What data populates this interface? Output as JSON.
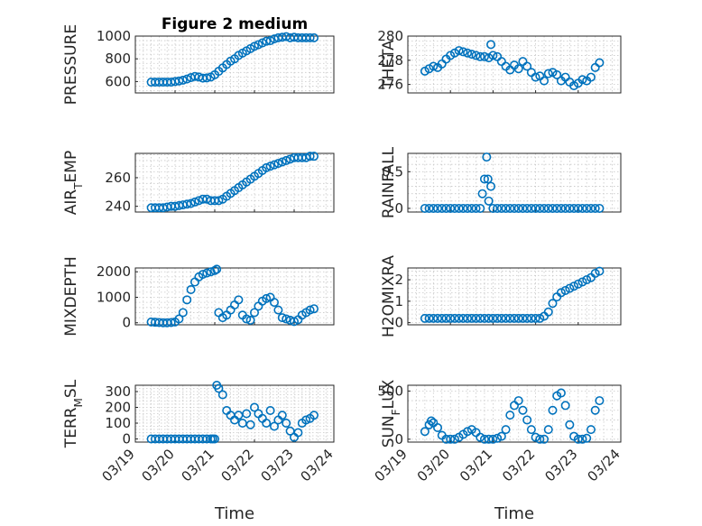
{
  "figure": {
    "title": "Figure 2 medium",
    "x_axis_label": "Time",
    "x_tick_labels": [
      "03/19",
      "03/20",
      "03/21",
      "03/22",
      "03/23",
      "03/24"
    ],
    "marker_color": "#0072BD"
  },
  "chart_data": [
    {
      "type": "scatter",
      "ylabel": "PRESSURE",
      "title": "Figure 2 medium",
      "xlabel": "",
      "ylim": [
        500,
        1000
      ],
      "yticks": [
        600,
        800,
        1000
      ],
      "yticklabels": [
        "600",
        "800",
        "1000"
      ],
      "xlim": [
        0,
        5
      ],
      "grid": true,
      "x": [
        0.4,
        0.5,
        0.6,
        0.7,
        0.8,
        0.9,
        1.0,
        1.1,
        1.2,
        1.3,
        1.4,
        1.5,
        1.6,
        1.7,
        1.8,
        1.9,
        2.0,
        2.1,
        2.2,
        2.3,
        2.4,
        2.5,
        2.6,
        2.7,
        2.8,
        2.9,
        3.0,
        3.1,
        3.2,
        3.3,
        3.4,
        3.5,
        3.6,
        3.7,
        3.8,
        3.9,
        4.0,
        4.1,
        4.2,
        4.3,
        4.4,
        4.5
      ],
      "y": [
        595,
        595,
        595,
        595,
        595,
        595,
        600,
        605,
        612,
        622,
        635,
        645,
        640,
        630,
        632,
        640,
        660,
        690,
        720,
        750,
        780,
        800,
        830,
        850,
        870,
        890,
        910,
        925,
        940,
        955,
        960,
        975,
        985,
        990,
        995,
        985,
        990,
        985,
        985,
        985,
        985,
        985
      ]
    },
    {
      "type": "scatter",
      "ylabel": "THETA",
      "xlabel": "",
      "ylim": [
        275.3,
        280
      ],
      "yticks": [
        276,
        278,
        280
      ],
      "yticklabels": [
        "276",
        "278",
        "280"
      ],
      "xlim": [
        0,
        5
      ],
      "grid": true,
      "x": [
        0.4,
        0.5,
        0.6,
        0.7,
        0.8,
        0.9,
        1.0,
        1.1,
        1.2,
        1.3,
        1.4,
        1.5,
        1.6,
        1.7,
        1.8,
        1.9,
        1.95,
        2.0,
        2.1,
        2.2,
        2.3,
        2.4,
        2.5,
        2.6,
        2.7,
        2.8,
        2.9,
        3.0,
        3.1,
        3.2,
        3.3,
        3.4,
        3.5,
        3.6,
        3.7,
        3.8,
        3.9,
        4.0,
        4.1,
        4.2,
        4.3,
        4.4,
        4.5
      ],
      "y": [
        277.1,
        277.3,
        277.5,
        277.4,
        277.7,
        278.1,
        278.4,
        278.6,
        278.8,
        278.7,
        278.6,
        278.5,
        278.4,
        278.3,
        278.3,
        278.2,
        279.3,
        278.4,
        278.3,
        277.9,
        277.5,
        277.2,
        277.6,
        277.3,
        277.9,
        277.5,
        277.0,
        276.6,
        276.7,
        276.3,
        276.9,
        277.0,
        276.8,
        276.3,
        276.6,
        276.2,
        275.9,
        276.1,
        276.4,
        276.3,
        276.6,
        277.4,
        277.8
      ]
    },
    {
      "type": "scatter",
      "ylabel": "AIR_TEMP",
      "xlabel": "",
      "ylim": [
        236,
        277
      ],
      "yticks": [
        240,
        260
      ],
      "yticklabels": [
        "240",
        "260"
      ],
      "xlim": [
        0,
        5
      ],
      "grid": true,
      "x": [
        0.4,
        0.5,
        0.6,
        0.7,
        0.8,
        0.9,
        1.0,
        1.1,
        1.2,
        1.3,
        1.4,
        1.5,
        1.6,
        1.7,
        1.8,
        1.9,
        2.0,
        2.1,
        2.2,
        2.3,
        2.4,
        2.5,
        2.6,
        2.7,
        2.8,
        2.9,
        3.0,
        3.1,
        3.2,
        3.3,
        3.4,
        3.5,
        3.6,
        3.7,
        3.8,
        3.9,
        4.0,
        4.1,
        4.2,
        4.3,
        4.4,
        4.5
      ],
      "y": [
        239,
        239,
        239,
        239,
        239.5,
        240,
        240,
        240.5,
        241,
        241.5,
        242,
        243,
        244,
        245,
        245,
        244,
        244,
        244,
        245,
        247,
        249,
        251,
        253,
        255,
        257,
        259,
        261,
        263,
        265,
        267,
        268,
        269,
        270,
        271,
        272,
        273,
        274,
        274,
        274,
        274,
        275,
        275
      ]
    },
    {
      "type": "scatter",
      "ylabel": "RAINFALL",
      "xlabel": "",
      "ylim": [
        -0.05,
        0.75
      ],
      "yticks": [
        0,
        0.5
      ],
      "yticklabels": [
        "0",
        "0.5"
      ],
      "xlim": [
        0,
        5
      ],
      "grid": true,
      "x": [
        0.4,
        0.5,
        0.6,
        0.7,
        0.8,
        0.9,
        1.0,
        1.1,
        1.2,
        1.3,
        1.4,
        1.5,
        1.6,
        1.7,
        1.75,
        1.8,
        1.85,
        1.88,
        1.9,
        1.95,
        2.0,
        2.1,
        2.2,
        2.3,
        2.4,
        2.5,
        2.6,
        2.7,
        2.8,
        2.9,
        3.0,
        3.1,
        3.2,
        3.3,
        3.4,
        3.5,
        3.6,
        3.7,
        3.8,
        3.9,
        4.0,
        4.1,
        4.2,
        4.3,
        4.4,
        4.5
      ],
      "y": [
        0,
        0,
        0,
        0,
        0,
        0,
        0,
        0,
        0,
        0,
        0,
        0,
        0,
        0,
        0.2,
        0.4,
        0.7,
        0.4,
        0.1,
        0.3,
        0,
        0,
        0,
        0,
        0,
        0,
        0,
        0,
        0,
        0,
        0,
        0,
        0,
        0,
        0,
        0,
        0,
        0,
        0,
        0,
        0,
        0,
        0,
        0,
        0,
        0
      ]
    },
    {
      "type": "scatter",
      "ylabel": "MIXDEPTH",
      "xlabel": "",
      "ylim": [
        -80,
        2150
      ],
      "yticks": [
        0,
        1000,
        2000
      ],
      "yticklabels": [
        "0",
        "1000",
        "2000"
      ],
      "xlim": [
        0,
        5
      ],
      "grid": true,
      "x": [
        0.4,
        0.5,
        0.6,
        0.7,
        0.8,
        0.9,
        1.0,
        1.1,
        1.2,
        1.3,
        1.4,
        1.5,
        1.6,
        1.7,
        1.8,
        1.9,
        2.0,
        2.05,
        2.1,
        2.2,
        2.3,
        2.4,
        2.5,
        2.6,
        2.7,
        2.8,
        2.9,
        3.0,
        3.1,
        3.2,
        3.3,
        3.4,
        3.5,
        3.6,
        3.7,
        3.8,
        3.9,
        4.0,
        4.1,
        4.2,
        4.3,
        4.4,
        4.5
      ],
      "y": [
        30,
        20,
        10,
        0,
        0,
        10,
        30,
        150,
        400,
        900,
        1300,
        1600,
        1800,
        1900,
        1950,
        2000,
        2050,
        2100,
        400,
        200,
        300,
        500,
        700,
        900,
        300,
        150,
        100,
        400,
        650,
        850,
        950,
        1000,
        800,
        500,
        200,
        150,
        100,
        50,
        120,
        300,
        400,
        500,
        550
      ]
    },
    {
      "type": "scatter",
      "ylabel": "H2OMIXRA",
      "xlabel": "",
      "ylim": [
        -0.1,
        2.55
      ],
      "yticks": [
        0,
        1,
        2
      ],
      "yticklabels": [
        "0",
        "1",
        "2"
      ],
      "xlim": [
        0,
        5
      ],
      "grid": true,
      "x": [
        0.4,
        0.5,
        0.6,
        0.7,
        0.8,
        0.9,
        1.0,
        1.1,
        1.2,
        1.3,
        1.4,
        1.5,
        1.6,
        1.7,
        1.8,
        1.9,
        2.0,
        2.1,
        2.2,
        2.3,
        2.4,
        2.5,
        2.6,
        2.7,
        2.8,
        2.9,
        3.0,
        3.1,
        3.2,
        3.3,
        3.4,
        3.5,
        3.6,
        3.7,
        3.8,
        3.9,
        4.0,
        4.1,
        4.2,
        4.3,
        4.4,
        4.5
      ],
      "y": [
        0.2,
        0.2,
        0.2,
        0.2,
        0.2,
        0.2,
        0.2,
        0.2,
        0.2,
        0.2,
        0.2,
        0.2,
        0.2,
        0.2,
        0.2,
        0.2,
        0.2,
        0.2,
        0.2,
        0.2,
        0.2,
        0.2,
        0.2,
        0.2,
        0.2,
        0.2,
        0.2,
        0.2,
        0.3,
        0.5,
        0.9,
        1.2,
        1.4,
        1.5,
        1.6,
        1.7,
        1.8,
        1.9,
        2.0,
        2.1,
        2.3,
        2.4
      ]
    },
    {
      "type": "scatter",
      "ylabel": "TERR_MSL",
      "xlabel": "Time",
      "ylim": [
        -20,
        340
      ],
      "yticks": [
        0,
        100,
        200,
        300
      ],
      "yticklabels": [
        "0",
        "100",
        "200",
        "300"
      ],
      "xlim": [
        0,
        5
      ],
      "grid": true,
      "x": [
        0.4,
        0.5,
        0.6,
        0.7,
        0.8,
        0.9,
        1.0,
        1.1,
        1.2,
        1.3,
        1.4,
        1.5,
        1.6,
        1.7,
        1.8,
        1.9,
        1.95,
        2.0,
        2.05,
        2.1,
        2.2,
        2.3,
        2.4,
        2.5,
        2.6,
        2.7,
        2.8,
        2.9,
        3.0,
        3.1,
        3.2,
        3.3,
        3.4,
        3.5,
        3.6,
        3.7,
        3.8,
        3.9,
        4.0,
        4.1,
        4.2,
        4.3,
        4.4,
        4.5
      ],
      "y": [
        0,
        0,
        0,
        0,
        0,
        0,
        0,
        0,
        0,
        0,
        0,
        0,
        0,
        0,
        0,
        0,
        0,
        0,
        340,
        320,
        280,
        180,
        150,
        120,
        150,
        100,
        160,
        90,
        200,
        160,
        130,
        100,
        180,
        80,
        120,
        150,
        100,
        50,
        10,
        40,
        100,
        120,
        130,
        150
      ]
    },
    {
      "type": "scatter",
      "ylabel": "SUN_FLUX",
      "xlabel": "Time",
      "ylim": [
        -30,
        560
      ],
      "yticks": [
        0,
        500
      ],
      "yticklabels": [
        "0",
        "500"
      ],
      "xlim": [
        0,
        5
      ],
      "grid": true,
      "x": [
        0.4,
        0.5,
        0.55,
        0.6,
        0.7,
        0.8,
        0.9,
        1.0,
        1.1,
        1.2,
        1.3,
        1.4,
        1.5,
        1.6,
        1.7,
        1.8,
        1.9,
        2.0,
        2.1,
        2.2,
        2.3,
        2.4,
        2.5,
        2.6,
        2.7,
        2.8,
        2.9,
        3.0,
        3.1,
        3.2,
        3.3,
        3.4,
        3.5,
        3.6,
        3.7,
        3.8,
        3.9,
        4.0,
        4.1,
        4.2,
        4.3,
        4.4,
        4.5
      ],
      "y": [
        80,
        150,
        190,
        170,
        120,
        40,
        0,
        0,
        0,
        20,
        50,
        80,
        100,
        70,
        20,
        0,
        0,
        0,
        10,
        30,
        100,
        250,
        350,
        400,
        300,
        200,
        100,
        20,
        0,
        0,
        100,
        300,
        450,
        480,
        350,
        150,
        30,
        0,
        0,
        10,
        100,
        300,
        400
      ]
    }
  ]
}
